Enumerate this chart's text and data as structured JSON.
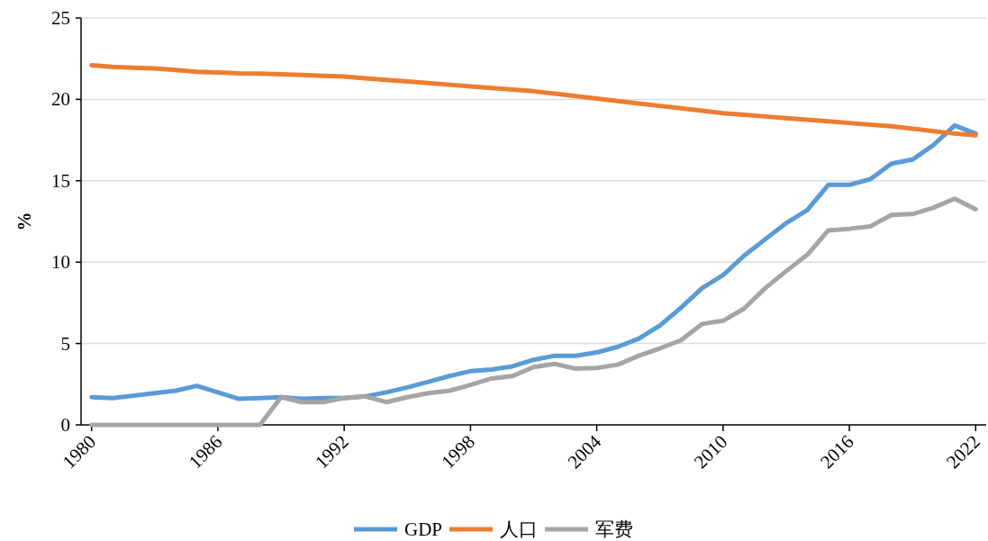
{
  "chart_data": {
    "type": "line",
    "ylabel": "%",
    "categories": [
      "1980",
      null,
      null,
      null,
      null,
      null,
      "1986",
      null,
      null,
      null,
      null,
      null,
      "1992",
      null,
      null,
      null,
      null,
      null,
      "1998",
      null,
      null,
      null,
      null,
      null,
      "2004",
      null,
      null,
      null,
      null,
      null,
      "2010",
      null,
      null,
      null,
      null,
      null,
      "2016",
      null,
      null,
      null,
      null,
      null,
      "2022"
    ],
    "series": [
      {
        "name": "GDP",
        "color": "#5b9bd5",
        "values": [
          1.7,
          1.65,
          1.8,
          1.95,
          2.1,
          2.4,
          2.0,
          1.6,
          1.65,
          1.7,
          1.6,
          1.65,
          1.65,
          1.75,
          2.0,
          2.3,
          2.65,
          3.0,
          3.3,
          3.4,
          3.6,
          4.0,
          4.25,
          4.25,
          4.45,
          4.8,
          5.3,
          6.1,
          7.2,
          8.4,
          9.2,
          10.4,
          11.4,
          12.4,
          13.2,
          14.75,
          14.75,
          15.1,
          16.05,
          16.3,
          17.2,
          18.4,
          17.9
        ]
      },
      {
        "name": "人口",
        "color": "#ed7d31",
        "values": [
          22.1,
          22.0,
          21.95,
          21.9,
          21.8,
          21.7,
          21.65,
          21.6,
          21.58,
          21.55,
          21.5,
          21.45,
          21.4,
          21.3,
          21.2,
          21.1,
          21.0,
          20.9,
          20.8,
          20.7,
          20.6,
          20.5,
          20.35,
          20.2,
          20.05,
          19.9,
          19.75,
          19.6,
          19.45,
          19.3,
          19.15,
          19.05,
          18.95,
          18.85,
          18.75,
          18.65,
          18.55,
          18.45,
          18.35,
          18.2,
          18.05,
          17.9,
          17.8
        ]
      },
      {
        "name": "军费",
        "color": "#a5a5a5",
        "values": [
          0,
          0,
          0,
          0,
          0,
          0,
          0,
          0,
          0,
          1.7,
          1.4,
          1.4,
          1.65,
          1.75,
          1.4,
          1.7,
          1.95,
          2.1,
          2.45,
          2.85,
          3.0,
          3.55,
          3.75,
          3.45,
          3.5,
          3.7,
          4.25,
          4.7,
          5.2,
          6.2,
          6.4,
          7.15,
          8.4,
          9.45,
          10.45,
          11.95,
          12.05,
          12.2,
          12.9,
          12.95,
          13.35,
          13.9,
          13.25
        ]
      }
    ],
    "ylim": [
      0,
      25
    ],
    "yticks": [
      0,
      5,
      10,
      15,
      20,
      25
    ],
    "grid": "y",
    "legend": "bottom"
  }
}
